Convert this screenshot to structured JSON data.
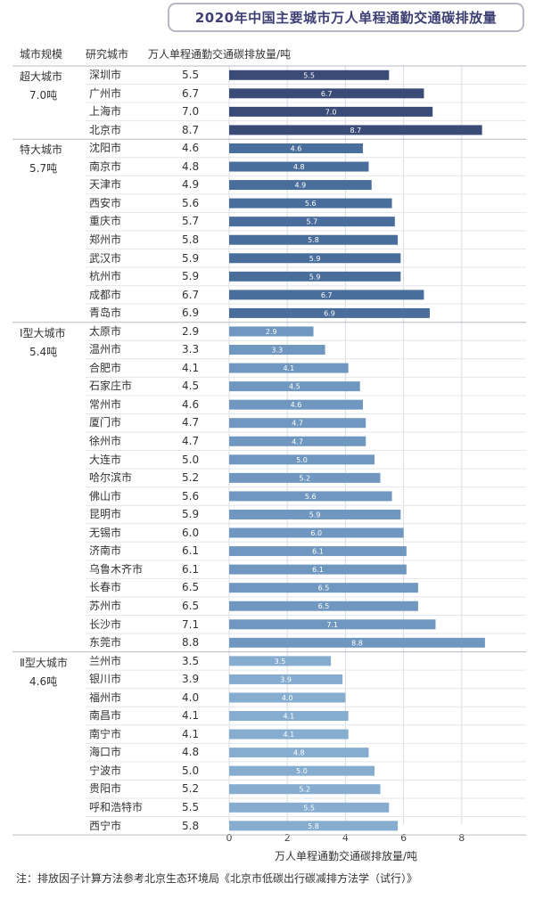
{
  "title": "2020年中国主要城市万人单程通勤交通碳排放量",
  "headers": {
    "scale": "城市规模",
    "city": "研究城市",
    "metric": "万人单程通勤交通碳排放量/吨"
  },
  "footnote": "注：排放因子计算方法参考北京生态环境局《北京市低碳出行碳减排方法学（试行）》",
  "colors": {
    "dark": "#3b4b78",
    "mid": "#4a6e9c",
    "light": "#6f97bf",
    "lighter": "#86acd0",
    "grid": "#d9dde3",
    "row_line": "#e4e6ea"
  },
  "chart_data": {
    "type": "bar",
    "orientation": "horizontal",
    "xlabel": "万人单程通勤交通碳排放量/吨",
    "xlim": [
      0,
      9
    ],
    "xticks": [
      0,
      2,
      4,
      6,
      8
    ],
    "groups": [
      {
        "name": "超大城市",
        "average": "7.0吨",
        "color": "#3b4b78",
        "cities": [
          "深圳市",
          "广州市",
          "上海市",
          "北京市"
        ],
        "values": [
          5.5,
          6.7,
          7.0,
          8.7
        ],
        "value_labels": [
          "5.5",
          "6.7",
          "7.0",
          "8.7"
        ]
      },
      {
        "name": "特大城市",
        "average": "5.7吨",
        "color": "#4a6e9c",
        "cities": [
          "沈阳市",
          "南京市",
          "天津市",
          "西安市",
          "重庆市",
          "郑州市",
          "武汉市",
          "杭州市",
          "成都市",
          "青岛市"
        ],
        "values": [
          4.6,
          4.8,
          4.9,
          5.6,
          5.7,
          5.8,
          5.9,
          5.9,
          6.7,
          6.9
        ],
        "value_labels": [
          "4.6",
          "4.8",
          "4.9",
          "5.6",
          "5.7",
          "5.8",
          "5.9",
          "5.9",
          "6.7",
          "6.9"
        ]
      },
      {
        "name": "Ⅰ型大城市",
        "average": "5.4吨",
        "color": "#6f97bf",
        "cities": [
          "太原市",
          "温州市",
          "合肥市",
          "石家庄市",
          "常州市",
          "厦门市",
          "徐州市",
          "大连市",
          "哈尔滨市",
          "佛山市",
          "昆明市",
          "无锡市",
          "济南市",
          "乌鲁木齐市",
          "长春市",
          "苏州市",
          "长沙市",
          "东莞市"
        ],
        "values": [
          2.9,
          3.3,
          4.1,
          4.5,
          4.6,
          4.7,
          4.7,
          5.0,
          5.2,
          5.6,
          5.9,
          6.0,
          6.1,
          6.1,
          6.5,
          6.5,
          7.1,
          8.8
        ],
        "value_labels": [
          "2.9",
          "3.3",
          "4.1",
          "4.5",
          "4.6",
          "4.7",
          "4.7",
          "5.0",
          "5.2",
          "5.6",
          "5.9",
          "6.0",
          "6.1",
          "6.1",
          "6.5",
          "6.5",
          "7.1",
          "8.8"
        ]
      },
      {
        "name": "Ⅱ型大城市",
        "average": "4.6吨",
        "color": "#86acd0",
        "cities": [
          "兰州市",
          "银川市",
          "福州市",
          "南昌市",
          "南宁市",
          "海口市",
          "宁波市",
          "贵阳市",
          "呼和浩特市",
          "西宁市"
        ],
        "values": [
          3.5,
          3.9,
          4.0,
          4.1,
          4.1,
          4.8,
          5.0,
          5.2,
          5.5,
          5.8
        ],
        "value_labels": [
          "3.5",
          "3.9",
          "4.0",
          "4.1",
          "4.1",
          "4.8",
          "5.0",
          "5.2",
          "5.5",
          "5.8"
        ]
      }
    ]
  }
}
